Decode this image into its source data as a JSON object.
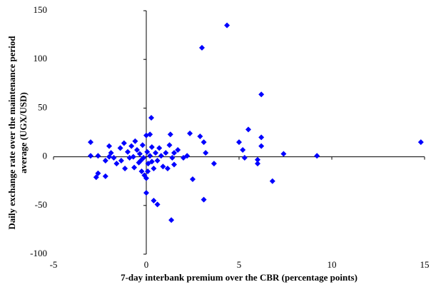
{
  "chart_data": {
    "type": "scatter",
    "xlabel": "7-day interbank premium over the CBR (percentage points)",
    "ylabel_lines": [
      "Daily exchange rate over the maintenance period",
      "average (UGX/USD)"
    ],
    "color": "#0000ff",
    "xlim": [
      -5,
      15
    ],
    "xticks": [
      -5,
      0,
      5,
      10,
      15
    ],
    "ylim": [
      -100,
      150
    ],
    "yticks": [
      -100,
      -50,
      0,
      50,
      100,
      150
    ],
    "x": [
      4.35,
      3.0,
      6.2,
      14.8,
      9.2,
      7.4,
      5.5,
      6.2,
      6.2,
      5.0,
      5.2,
      5.3,
      6.0,
      6.0,
      6.8,
      3.65,
      3.1,
      3.2,
      3.1,
      2.9,
      2.35,
      2.5,
      2.2,
      2.0,
      1.7,
      1.5,
      1.3,
      1.35,
      0.27,
      0.4,
      0.6,
      0.0,
      0.2,
      -3.0,
      -3.0,
      -2.6,
      -2.7,
      -2.6,
      -2.2,
      -2.2,
      -2.0,
      -2.0,
      -1.9,
      -1.75,
      -1.6,
      -1.4,
      -1.35,
      -1.15,
      -1.2,
      -1.0,
      -0.9,
      -0.8,
      -0.7,
      -0.65,
      -0.6,
      -0.5,
      -0.4,
      -0.35,
      -0.25,
      -0.2,
      -0.15,
      -0.1,
      0.05,
      0.1,
      0.2,
      0.3,
      0.4,
      0.5,
      0.6,
      0.7,
      0.8,
      0.9,
      1.05,
      1.15,
      1.25,
      1.4,
      1.5,
      -0.3,
      0.0,
      0.0,
      0.3,
      0.08
    ],
    "y": [
      135,
      112,
      64,
      15,
      1,
      3,
      28,
      20,
      11,
      15,
      7,
      -1,
      -3,
      -7,
      -25,
      -7,
      -44,
      4,
      15,
      21,
      24,
      -23,
      1,
      -1,
      7,
      4,
      23,
      -65,
      40,
      -45,
      -49,
      -37,
      23,
      15,
      1,
      1,
      -21,
      -17,
      -20,
      -4,
      0,
      11,
      4,
      -1,
      -7,
      9,
      -4,
      -12,
      14,
      5,
      -1,
      11,
      0,
      -11,
      16,
      7,
      -6,
      3,
      -15,
      12,
      -1,
      -19,
      5,
      -7,
      1,
      10,
      -12,
      4,
      -4,
      9,
      1,
      -10,
      4,
      -12,
      12,
      -1,
      -8,
      -4,
      -22,
      22,
      -5,
      -15
    ]
  }
}
